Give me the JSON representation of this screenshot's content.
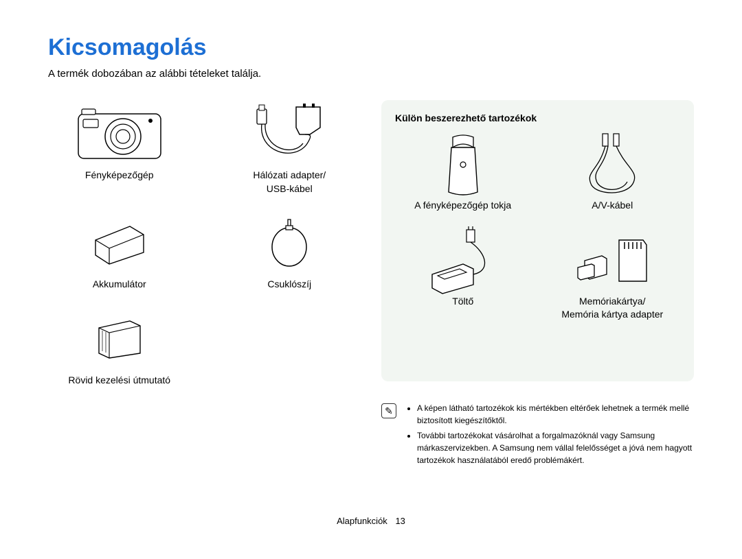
{
  "title": "Kicsomagolás",
  "title_color": "#1d6fd4",
  "subtitle": "A termék dobozában az alábbi tételeket találja.",
  "included_items": [
    {
      "label": "Fényképezőgép"
    },
    {
      "label": "Hálózati adapter/\nUSB-kábel"
    },
    {
      "label": "Akkumulátor"
    },
    {
      "label": "Csuklószíj"
    },
    {
      "label": "Rövid kezelési útmutató"
    }
  ],
  "optional_box": {
    "title": "Külön beszerezhető tartozékok",
    "background_color": "#f2f6f2",
    "items": [
      {
        "label": "A fényképezőgép tokja"
      },
      {
        "label": "A/V-kábel"
      },
      {
        "label": "Töltő"
      },
      {
        "label": "Memóriakártya/\nMemória kártya adapter"
      }
    ]
  },
  "note": {
    "icon_glyph": "✎",
    "bullets": [
      "A képen látható tartozékok kis mértékben eltérőek lehetnek a termék mellé biztosított kiegészítőktől.",
      "További tartozékokat vásárolhat a forgalmazóknál vagy Samsung márkaszervizekben. A Samsung nem vállal felelősséget a jóvá nem hagyott tartozékok használatából eredő problémákért."
    ]
  },
  "footer": {
    "section": "Alapfunkciók",
    "page": "13"
  },
  "icon_stroke": "#000000",
  "icon_fill": "#ffffff"
}
